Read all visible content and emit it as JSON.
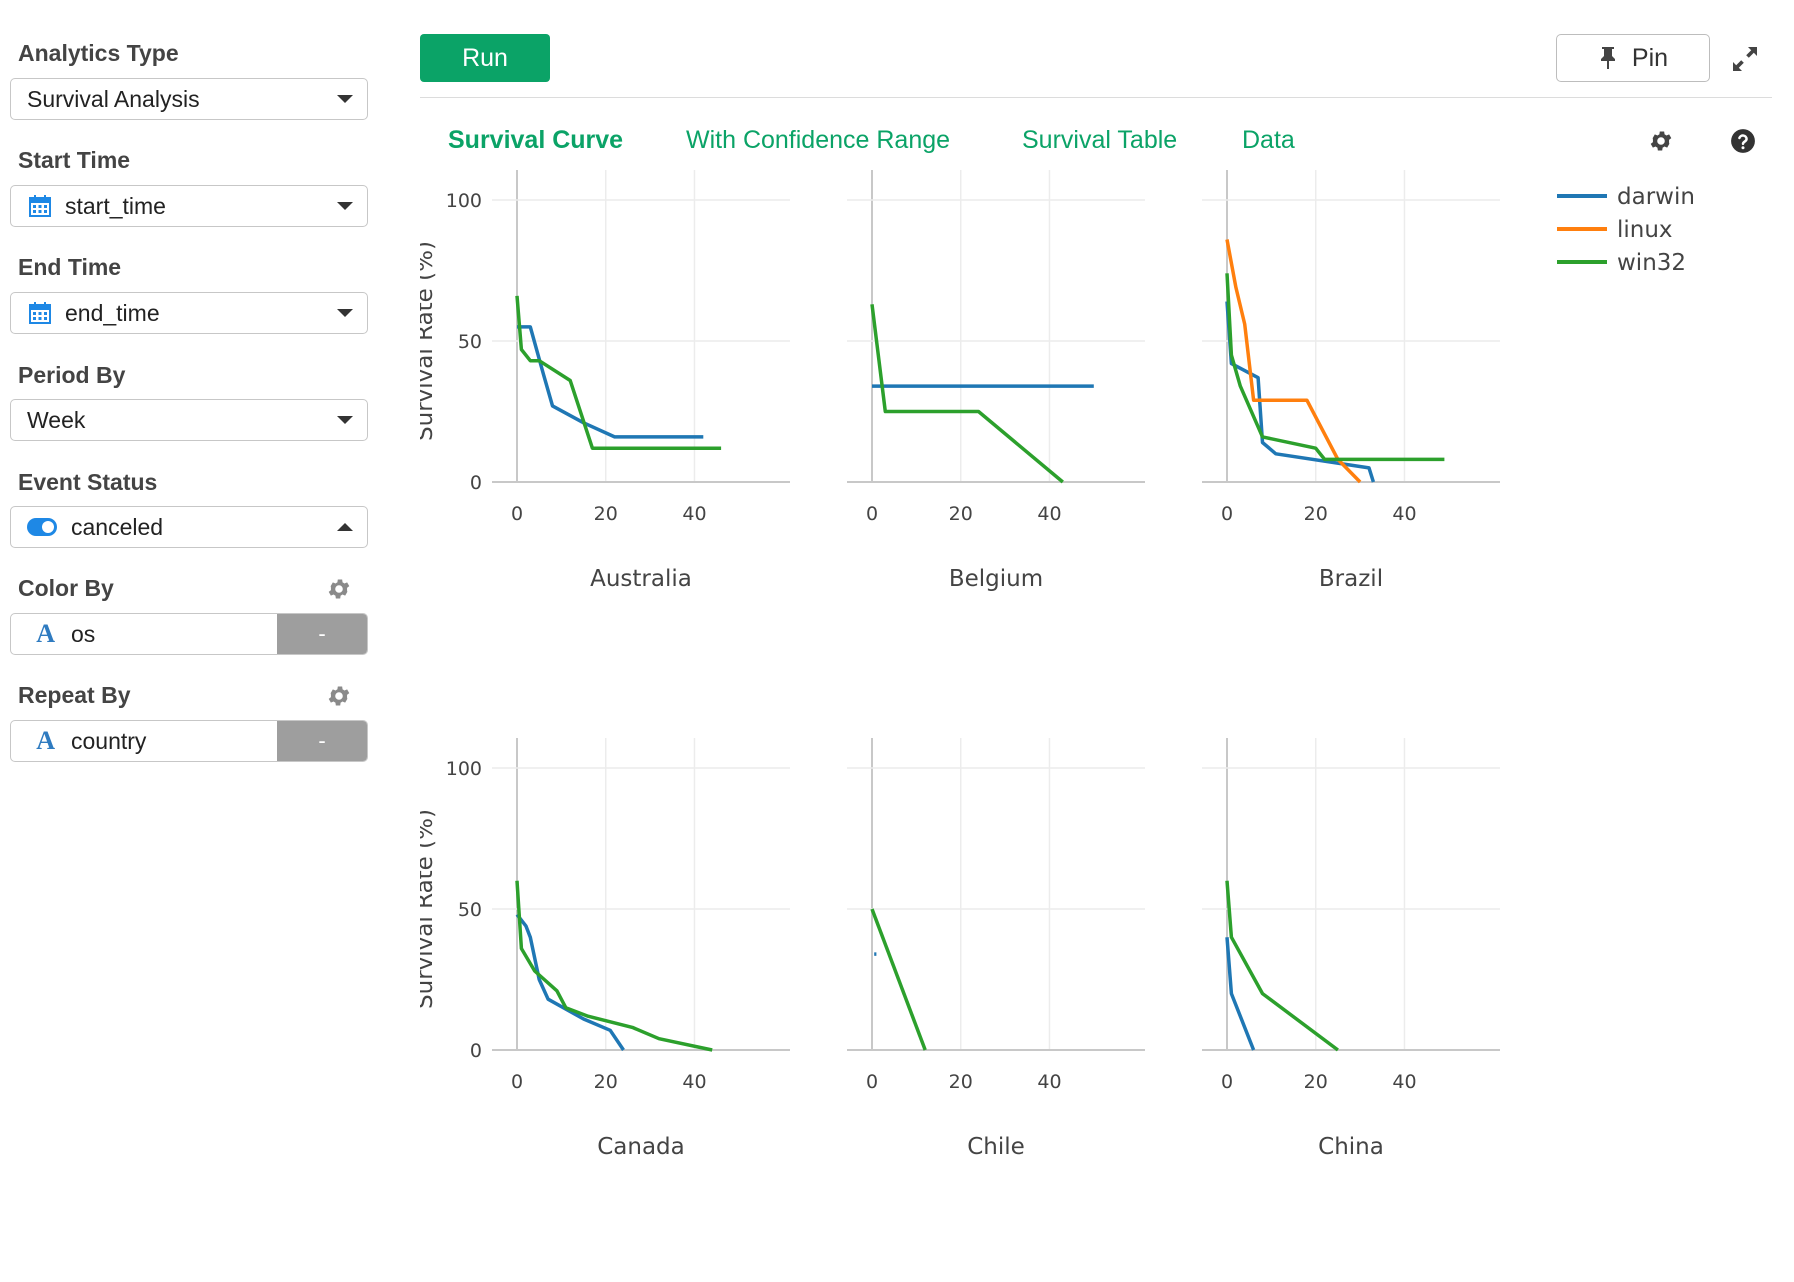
{
  "sidebar": {
    "analytics_type": {
      "label": "Analytics Type",
      "value": "Survival Analysis"
    },
    "start_time": {
      "label": "Start Time",
      "value": "start_time",
      "icon": "calendar-icon"
    },
    "end_time": {
      "label": "End Time",
      "value": "end_time",
      "icon": "calendar-icon"
    },
    "period_by": {
      "label": "Period By",
      "value": "Week"
    },
    "event_status": {
      "label": "Event Status",
      "value": "canceled",
      "icon": "toggle-icon"
    },
    "color_by": {
      "label": "Color By",
      "value": "os",
      "remove_label": "-"
    },
    "repeat_by": {
      "label": "Repeat By",
      "value": "country",
      "remove_label": "-"
    }
  },
  "toolbar": {
    "run_label": "Run",
    "pin_label": "Pin"
  },
  "tabs": [
    {
      "label": "Survival Curve",
      "active": true
    },
    {
      "label": "With Confidence Range",
      "active": false
    },
    {
      "label": "Survival Table",
      "active": false
    },
    {
      "label": "Data",
      "active": false
    }
  ],
  "colors": {
    "accent": "#0ba367",
    "darwin": "#1f77b4",
    "linux": "#ff7f0e",
    "win32": "#2ca02c"
  },
  "chart_data": {
    "type": "line",
    "ylabel": "Survival Rate (%)",
    "xlim": [
      0,
      55
    ],
    "ylim": [
      0,
      100
    ],
    "x_ticks": [
      0,
      20,
      40
    ],
    "y_ticks": [
      0,
      50,
      100
    ],
    "grid": true,
    "legend_position": "top-right",
    "legend": [
      "darwin",
      "linux",
      "win32"
    ],
    "panels": [
      {
        "title": "Australia",
        "series": [
          {
            "name": "darwin",
            "points": [
              [
                0,
                55
              ],
              [
                3,
                55
              ],
              [
                6,
                38
              ],
              [
                8,
                27
              ],
              [
                15,
                21
              ],
              [
                22,
                16
              ],
              [
                42,
                16
              ]
            ]
          },
          {
            "name": "win32",
            "points": [
              [
                0,
                66
              ],
              [
                1,
                47
              ],
              [
                3,
                43
              ],
              [
                5,
                43
              ],
              [
                12,
                36
              ],
              [
                17,
                12
              ],
              [
                46,
                12
              ]
            ]
          }
        ]
      },
      {
        "title": "Belgium",
        "series": [
          {
            "name": "darwin",
            "points": [
              [
                0,
                34
              ],
              [
                50,
                34
              ]
            ]
          },
          {
            "name": "win32",
            "points": [
              [
                0,
                63
              ],
              [
                3,
                25
              ],
              [
                24,
                25
              ],
              [
                43,
                0
              ]
            ]
          }
        ]
      },
      {
        "title": "Brazil",
        "series": [
          {
            "name": "darwin",
            "points": [
              [
                0,
                64
              ],
              [
                1,
                42
              ],
              [
                7,
                37
              ],
              [
                8,
                14
              ],
              [
                11,
                10
              ],
              [
                32,
                5
              ],
              [
                33,
                0
              ]
            ]
          },
          {
            "name": "linux",
            "points": [
              [
                0,
                86
              ],
              [
                2,
                69
              ],
              [
                4,
                56
              ],
              [
                6,
                29
              ],
              [
                18,
                29
              ],
              [
                25,
                8
              ],
              [
                30,
                0
              ]
            ]
          },
          {
            "name": "win32",
            "points": [
              [
                0,
                74
              ],
              [
                1,
                45
              ],
              [
                3,
                34
              ],
              [
                8,
                16
              ],
              [
                20,
                12
              ],
              [
                22,
                8
              ],
              [
                49,
                8
              ]
            ]
          }
        ]
      },
      {
        "title": "Canada",
        "series": [
          {
            "name": "darwin",
            "points": [
              [
                0,
                48
              ],
              [
                2,
                44
              ],
              [
                3,
                40
              ],
              [
                5,
                25
              ],
              [
                7,
                18
              ],
              [
                15,
                11
              ],
              [
                21,
                7
              ],
              [
                24,
                0
              ]
            ]
          },
          {
            "name": "win32",
            "points": [
              [
                0,
                60
              ],
              [
                1,
                36
              ],
              [
                4,
                28
              ],
              [
                9,
                21
              ],
              [
                11,
                15
              ],
              [
                16,
                12
              ],
              [
                26,
                8
              ],
              [
                32,
                4
              ],
              [
                44,
                0
              ]
            ]
          }
        ]
      },
      {
        "title": "Chile",
        "series": [
          {
            "name": "darwin",
            "points": [
              [
                0.5,
                34
              ],
              [
                1,
                34
              ]
            ]
          },
          {
            "name": "win32",
            "points": [
              [
                0,
                50
              ],
              [
                12,
                0
              ]
            ]
          }
        ]
      },
      {
        "title": "China",
        "series": [
          {
            "name": "darwin",
            "points": [
              [
                0,
                40
              ],
              [
                1,
                20
              ],
              [
                6,
                0
              ]
            ]
          },
          {
            "name": "win32",
            "points": [
              [
                0,
                60
              ],
              [
                1,
                40
              ],
              [
                8,
                20
              ],
              [
                25,
                0
              ]
            ]
          }
        ]
      }
    ]
  }
}
